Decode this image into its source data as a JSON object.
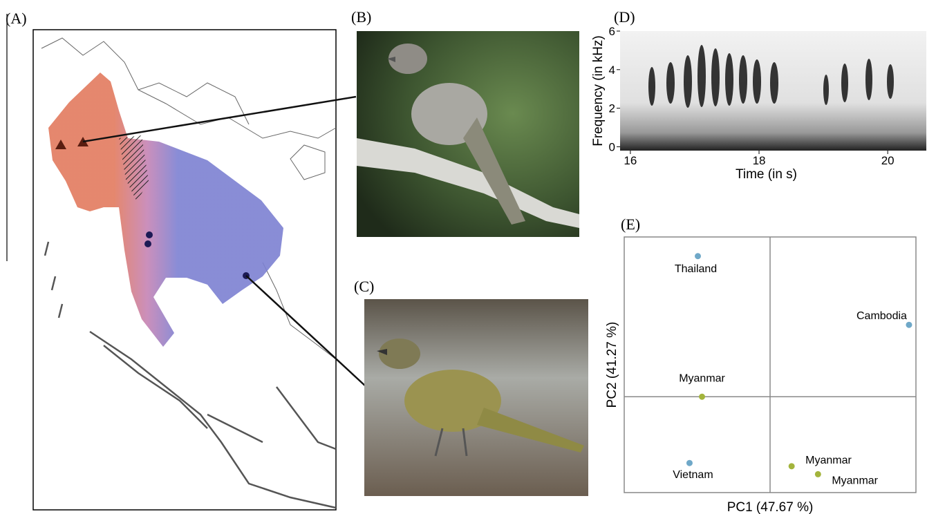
{
  "panel_labels": [
    "(A)",
    "(B)",
    "(C)",
    "(D)",
    "(E)"
  ],
  "chart_data": [
    {
      "type": "spectrogram",
      "xlabel": "Time (in s)",
      "ylabel": "Frequency (in kHz)",
      "xlim": [
        15.84,
        20.6
      ],
      "ylim": [
        -0.2,
        6
      ],
      "xticks": [
        16,
        18,
        20
      ],
      "yticks": [
        0,
        2,
        4,
        6
      ]
    },
    {
      "type": "scatter",
      "xlabel": "PC1 (47.67 %)",
      "ylabel": "PC2 (41.27 %)",
      "labels": [
        "Thailand",
        "Cambodia",
        "Myanmar",
        "Vietnam",
        "Myanmar",
        "Myanmar"
      ],
      "x": [
        -1.04,
        2.0,
        -0.98,
        -1.16,
        0.31,
        0.69
      ],
      "values": [
        1.76,
        0.9,
        0,
        -0.83,
        -0.87,
        -0.97
      ],
      "colors": [
        "#6fa8c8",
        "#6fa8c8",
        "#a3b43c",
        "#6fa8c8",
        "#a3b43c",
        "#a3b43c"
      ],
      "xlim": [
        -2.1,
        2.1
      ],
      "ylim": [
        -1.2,
        2
      ]
    }
  ]
}
